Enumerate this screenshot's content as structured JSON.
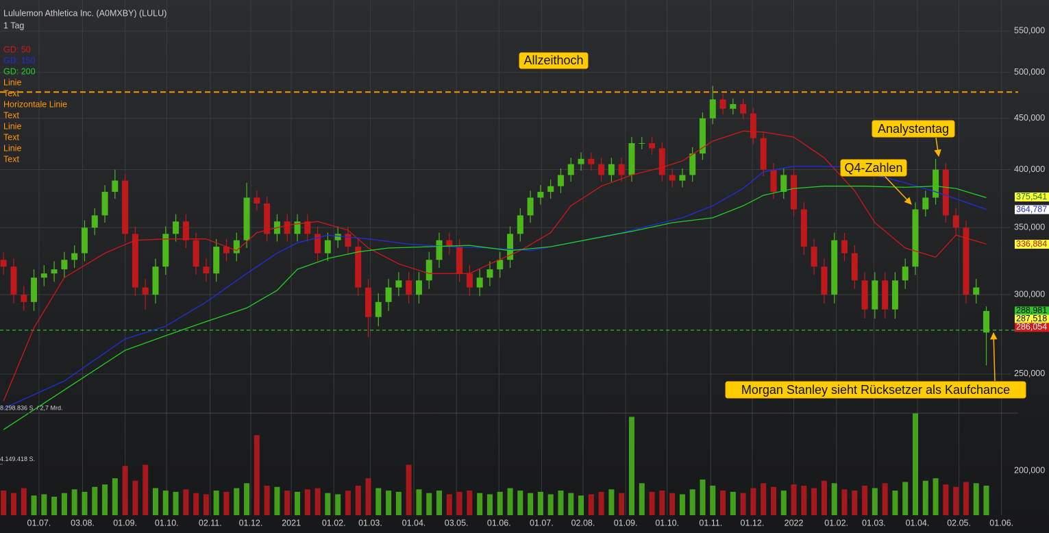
{
  "chart_data": {
    "type": "candlestick",
    "title": "Lululemon Athletica Inc. (A0MXBY) (LULU)",
    "subtitle": "1 Tag",
    "tool_labels": [
      "Linie",
      "Text",
      "Horizontale Linie",
      "Text",
      "Linie",
      "Text",
      "Linie",
      "Text"
    ],
    "tool_color": "#ff9900",
    "up_color": "#4cb81c",
    "down_color": "#c0191c",
    "log_scale": true,
    "grid": true,
    "xlim": [
      -0.35,
      99.4
    ],
    "xticks": [
      {
        "value": 3.5,
        "label": "01.07."
      },
      {
        "value": 7.8,
        "label": "03.08."
      },
      {
        "value": 12.0,
        "label": "01.09."
      },
      {
        "value": 16.1,
        "label": "01.10."
      },
      {
        "value": 20.4,
        "label": "02.11."
      },
      {
        "value": 24.4,
        "label": "01.12."
      },
      {
        "value": 28.4,
        "label": "2021"
      },
      {
        "value": 32.6,
        "label": "01.02."
      },
      {
        "value": 36.2,
        "label": "01.03."
      },
      {
        "value": 40.5,
        "label": "01.04."
      },
      {
        "value": 44.7,
        "label": "03.05."
      },
      {
        "value": 48.9,
        "label": "01.06."
      },
      {
        "value": 53.1,
        "label": "01.07."
      },
      {
        "value": 57.2,
        "label": "02.08."
      },
      {
        "value": 61.4,
        "label": "01.09."
      },
      {
        "value": 65.5,
        "label": "01.10."
      },
      {
        "value": 69.8,
        "label": "01.11."
      },
      {
        "value": 73.9,
        "label": "01.12."
      },
      {
        "value": 78.0,
        "label": "2022"
      },
      {
        "value": 82.2,
        "label": "01.02."
      },
      {
        "value": 85.9,
        "label": "01.03."
      },
      {
        "value": 90.2,
        "label": "01.04."
      },
      {
        "value": 94.3,
        "label": "02.05."
      },
      {
        "value": 98.5,
        "label": "01.06."
      }
    ],
    "ylim": [
      228.5,
      563.4
    ],
    "yticks": [
      {
        "value": 250,
        "label": "250,000"
      },
      {
        "value": 300,
        "label": "300,000"
      },
      {
        "value": 350,
        "label": "350,000"
      },
      {
        "value": 400,
        "label": "400,000"
      },
      {
        "value": 450,
        "label": "450,000"
      },
      {
        "value": 500,
        "label": "500,000"
      },
      {
        "value": 550,
        "label": "550,000"
      }
    ],
    "open": [
      325,
      320,
      300,
      295,
      312,
      315,
      318,
      325,
      330,
      350,
      360,
      380,
      390,
      345,
      305,
      300,
      320,
      345,
      355,
      340,
      320,
      315,
      335,
      330,
      340,
      375,
      370,
      345,
      355,
      345,
      355,
      345,
      330,
      340,
      345,
      335,
      305,
      285,
      295,
      305,
      310,
      300,
      310,
      325,
      340,
      335,
      315,
      305,
      312,
      318,
      325,
      345,
      360,
      375,
      380,
      385,
      395,
      405,
      410,
      405,
      395,
      405,
      395,
      425,
      425,
      420,
      395,
      390,
      395,
      415,
      450,
      470,
      460,
      465,
      455,
      430,
      400,
      380,
      395,
      365,
      335,
      320,
      300,
      340,
      330,
      310,
      290,
      310,
      290,
      310,
      320,
      365,
      375,
      400,
      360,
      350,
      300,
      275
    ],
    "high": [
      331,
      326,
      306,
      318,
      321,
      324,
      331,
      336,
      356,
      366,
      386,
      400,
      396,
      351,
      311,
      326,
      351,
      361,
      361,
      346,
      326,
      341,
      341,
      346,
      388,
      381,
      376,
      361,
      361,
      361,
      361,
      351,
      346,
      351,
      351,
      341,
      311,
      301,
      311,
      316,
      316,
      316,
      331,
      346,
      346,
      341,
      321,
      318,
      324,
      331,
      351,
      366,
      381,
      386,
      391,
      401,
      411,
      416,
      416,
      411,
      411,
      411,
      431,
      431,
      431,
      426,
      401,
      401,
      421,
      456,
      485,
      476,
      471,
      471,
      461,
      436,
      406,
      401,
      401,
      371,
      341,
      326,
      346,
      346,
      336,
      316,
      316,
      316,
      316,
      326,
      371,
      381,
      410,
      406,
      366,
      356,
      311,
      292
    ],
    "low": [
      314,
      294,
      289,
      289,
      306,
      309,
      312,
      319,
      324,
      344,
      354,
      374,
      339,
      299,
      290,
      294,
      314,
      339,
      334,
      314,
      309,
      309,
      324,
      324,
      334,
      364,
      339,
      339,
      339,
      339,
      339,
      324,
      324,
      334,
      329,
      299,
      272,
      279,
      289,
      299,
      294,
      294,
      304,
      319,
      329,
      309,
      299,
      299,
      306,
      312,
      319,
      339,
      354,
      369,
      374,
      379,
      389,
      399,
      399,
      389,
      389,
      389,
      389,
      419,
      414,
      389,
      384,
      384,
      389,
      409,
      444,
      454,
      454,
      449,
      424,
      394,
      374,
      374,
      359,
      329,
      314,
      294,
      294,
      324,
      304,
      284,
      284,
      284,
      284,
      304,
      314,
      359,
      369,
      354,
      344,
      294,
      294,
      255
    ],
    "close": [
      320,
      300,
      295,
      312,
      315,
      318,
      325,
      330,
      350,
      360,
      380,
      390,
      345,
      305,
      300,
      320,
      345,
      355,
      340,
      320,
      315,
      335,
      330,
      340,
      375,
      370,
      345,
      355,
      345,
      355,
      345,
      330,
      340,
      345,
      335,
      305,
      285,
      295,
      305,
      310,
      300,
      310,
      325,
      340,
      335,
      315,
      305,
      312,
      318,
      325,
      345,
      360,
      375,
      380,
      385,
      395,
      405,
      410,
      405,
      395,
      405,
      395,
      425,
      425,
      420,
      395,
      390,
      395,
      415,
      450,
      470,
      460,
      465,
      455,
      430,
      400,
      380,
      395,
      365,
      335,
      320,
      300,
      340,
      330,
      310,
      290,
      310,
      290,
      310,
      320,
      365,
      375,
      400,
      360,
      350,
      300,
      305,
      289
    ],
    "volume": [
      2000000,
      1800000,
      2200000,
      1600000,
      1700000,
      1500000,
      1800000,
      2100000,
      1900000,
      2300000,
      2500000,
      3000000,
      4000000,
      2800000,
      4100000,
      2200000,
      2000000,
      1900000,
      2100000,
      1800000,
      1700000,
      2000000,
      1900000,
      2200000,
      2600000,
      6500000,
      2400000,
      2300000,
      2000000,
      1900000,
      2100000,
      2200000,
      1800000,
      1700000,
      2000000,
      2400000,
      3000000,
      2200000,
      2000000,
      1900000,
      4100000,
      2100000,
      1800000,
      2000000,
      1700000,
      1900000,
      2000000,
      1800000,
      1700000,
      1900000,
      2200000,
      2000000,
      1800000,
      1900000,
      1700000,
      2000000,
      1800000,
      1600000,
      1700000,
      1900000,
      2100000,
      1800000,
      8000000,
      2600000,
      1900000,
      2000000,
      1800000,
      1700000,
      2100000,
      2900000,
      2400000,
      2000000,
      1900000,
      1800000,
      2200000,
      2600000,
      2300000,
      2000000,
      2500000,
      2400000,
      2200000,
      2800000,
      2600000,
      2100000,
      2000000,
      2400000,
      2200000,
      2600000,
      2000000,
      2700000,
      8300000,
      2800000,
      3000000,
      2500000,
      2300000,
      2700000,
      2600000,
      2400000
    ],
    "vlim": [
      0,
      8298836
    ],
    "vticks": [
      {
        "value": 8298836,
        "label": "8.298.836 S. / 2,7 Mrd."
      },
      {
        "value": 4149418,
        "label": "4.149.418 S."
      }
    ],
    "volume_axis_label": "200,000",
    "series": [
      {
        "name": "GD: 50",
        "color": "#d01818",
        "x": [
          0,
          3,
          6,
          10,
          13,
          16,
          20,
          23,
          25,
          28,
          31,
          34,
          36,
          39,
          42,
          46,
          48,
          51,
          54,
          56,
          59,
          62,
          65,
          67,
          70,
          73,
          75,
          78,
          81,
          84,
          86,
          89,
          92,
          94,
          97
        ],
        "values": [
          235,
          278,
          312,
          330,
          340,
          341,
          341,
          332,
          346,
          352,
          355,
          348,
          334,
          322,
          315,
          315,
          322,
          332,
          346,
          368,
          385,
          395,
          402,
          408,
          427,
          437,
          436,
          431,
          411,
          381,
          354,
          334,
          327,
          344,
          337
        ]
      },
      {
        "name": "GD: 150",
        "color": "#1f2fd8",
        "x": [
          0,
          6,
          12,
          16,
          20,
          24,
          27,
          29,
          32,
          36,
          40,
          44,
          48,
          52,
          56,
          61,
          65,
          67,
          70,
          73,
          75,
          78,
          81,
          84,
          86,
          89,
          92,
          94,
          97
        ],
        "values": [
          231,
          246,
          271,
          279,
          295,
          315,
          330,
          338,
          344,
          341,
          337,
          335,
          334,
          332,
          338,
          346,
          354,
          358,
          368,
          383,
          398,
          403,
          403,
          402,
          395,
          388,
          380,
          374,
          365
        ]
      },
      {
        "name": "GD: 200",
        "color": "#22d022",
        "x": [
          0,
          6,
          12,
          16,
          20,
          24,
          27,
          29,
          32,
          35,
          38,
          42,
          46,
          50,
          54,
          58,
          62,
          66,
          70,
          73,
          75,
          78,
          81,
          85,
          89,
          92,
          94,
          97
        ],
        "values": [
          220,
          241,
          264,
          273,
          282,
          291,
          303,
          318,
          326,
          331,
          334,
          335,
          336,
          332,
          335,
          341,
          347,
          354,
          358,
          368,
          377,
          383,
          385,
          385,
          384,
          385,
          383,
          375
        ]
      }
    ],
    "hlines": [
      {
        "value": 478,
        "color": "#ff9900"
      },
      {
        "value": 276.5,
        "color": "#2ed12e"
      }
    ],
    "annotations": [
      "Allzeithoch",
      "Analystentag",
      "Q4-Zahlen",
      "Morgan Stanley sieht Rücksetzer als Kaufchance"
    ],
    "last_values": [
      {
        "value": 375.541,
        "label": "375,541",
        "bg": "#ffff33",
        "fg": "#117711"
      },
      {
        "value": 364.787,
        "label": "364,787",
        "bg": "#ffffff",
        "fg": "#1f2fd8"
      },
      {
        "value": 336.884,
        "label": "336,884",
        "bg": "#ffff33",
        "fg": "#c0191c"
      },
      {
        "value": 288.981,
        "label": "288,981",
        "bg": "#2ec42e",
        "fg": "#000000"
      },
      {
        "value": 287.518,
        "label": "287,518",
        "bg": "#ffff33",
        "fg": "#000000"
      },
      {
        "value": 286.054,
        "label": "286,054",
        "bg": "#d21c1c",
        "fg": "#ffffff"
      }
    ]
  }
}
